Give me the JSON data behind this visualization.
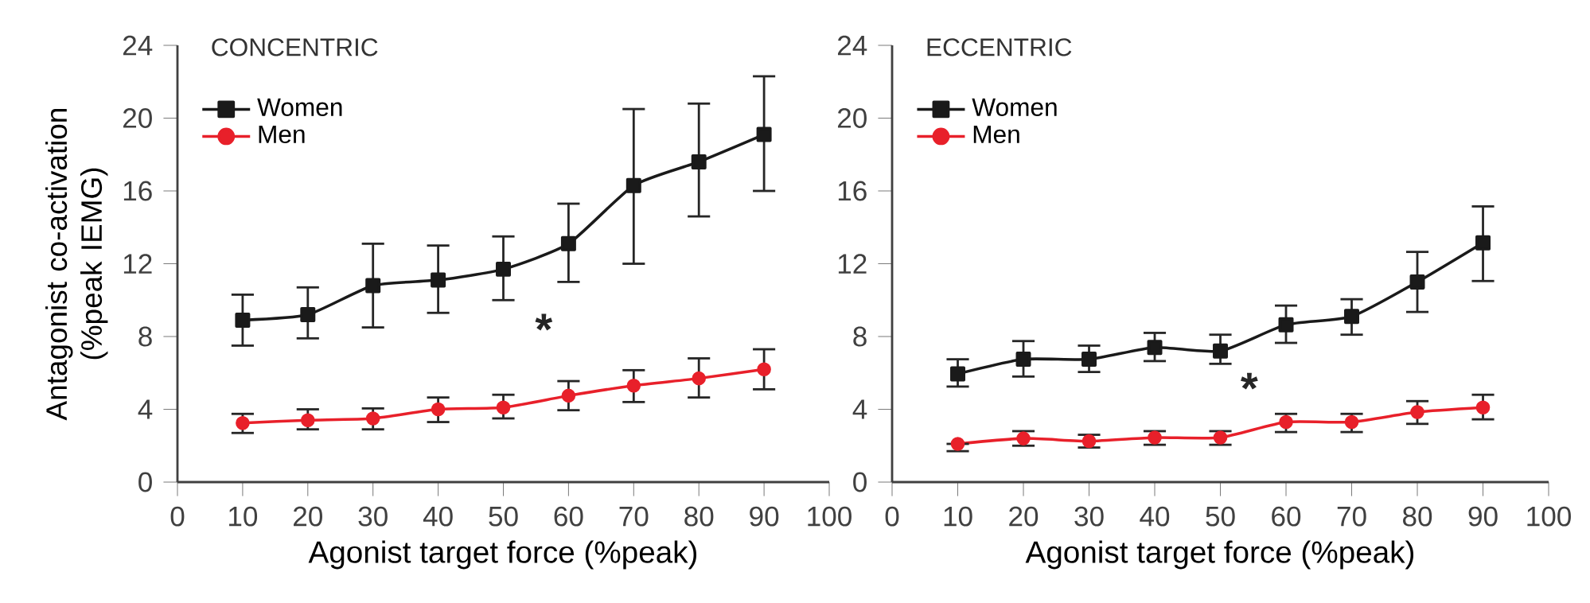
{
  "chart_data": [
    {
      "type": "line",
      "title": "CONCENTRIC",
      "xlabel": "Agonist target force (%peak)",
      "ylabel": "Antagonist co-activation (%peak IEMG)",
      "x": [
        10,
        20,
        30,
        40,
        50,
        60,
        70,
        80,
        90
      ],
      "xlim": [
        0,
        100
      ],
      "xticks": [
        0,
        10,
        20,
        30,
        40,
        50,
        60,
        70,
        80,
        90,
        100
      ],
      "ylim": [
        0,
        24
      ],
      "yticks": [
        0,
        4,
        8,
        12,
        16,
        20,
        24
      ],
      "legend": "top left",
      "series": [
        {
          "name": "Women",
          "color": "#1a1a1a",
          "marker": "square",
          "values": [
            8.9,
            9.2,
            10.8,
            11.1,
            11.7,
            13.1,
            16.3,
            17.6,
            19.1
          ],
          "errors": [
            [
              7.5,
              10.3
            ],
            [
              7.9,
              10.7
            ],
            [
              8.5,
              13.1
            ],
            [
              9.3,
              13.0
            ],
            [
              10.0,
              13.5
            ],
            [
              11.0,
              15.3
            ],
            [
              12.0,
              20.5
            ],
            [
              14.6,
              20.8
            ],
            [
              16.0,
              22.3
            ]
          ]
        },
        {
          "name": "Men",
          "color": "#e8202a",
          "marker": "circle",
          "values": [
            3.25,
            3.4,
            3.5,
            4.0,
            4.1,
            4.75,
            5.3,
            5.7,
            6.2
          ],
          "errors": [
            [
              2.7,
              3.75
            ],
            [
              2.9,
              4.0
            ],
            [
              2.9,
              4.05
            ],
            [
              3.3,
              4.65
            ],
            [
              3.5,
              4.8
            ],
            [
              3.95,
              5.55
            ],
            [
              4.4,
              6.15
            ],
            [
              4.65,
              6.8
            ],
            [
              5.1,
              7.3
            ]
          ]
        }
      ],
      "annotations": [
        "*"
      ]
    },
    {
      "type": "line",
      "title": "ECCENTRIC",
      "xlabel": "Agonist target force (%peak)",
      "x": [
        10,
        20,
        30,
        40,
        50,
        60,
        70,
        80,
        90
      ],
      "xlim": [
        0,
        100
      ],
      "xticks": [
        0,
        10,
        20,
        30,
        40,
        50,
        60,
        70,
        80,
        90,
        100
      ],
      "ylim": [
        0,
        24
      ],
      "yticks": [
        0,
        4,
        8,
        12,
        16,
        20,
        24
      ],
      "legend": "top left",
      "series": [
        {
          "name": "Women",
          "color": "#1a1a1a",
          "marker": "square",
          "values": [
            5.95,
            6.75,
            6.75,
            7.4,
            7.2,
            8.65,
            9.1,
            11.0,
            13.15
          ],
          "errors": [
            [
              5.25,
              6.75
            ],
            [
              5.8,
              7.75
            ],
            [
              6.05,
              7.5
            ],
            [
              6.65,
              8.2
            ],
            [
              6.5,
              8.1
            ],
            [
              7.65,
              9.7
            ],
            [
              8.1,
              10.05
            ],
            [
              9.35,
              12.65
            ],
            [
              11.05,
              15.15
            ]
          ]
        },
        {
          "name": "Men",
          "color": "#e8202a",
          "marker": "circle",
          "values": [
            2.1,
            2.4,
            2.25,
            2.45,
            2.45,
            3.3,
            3.3,
            3.85,
            4.1
          ],
          "errors": [
            [
              1.7,
              2.1
            ],
            [
              2.0,
              2.8
            ],
            [
              1.9,
              2.6
            ],
            [
              2.05,
              2.8
            ],
            [
              2.05,
              2.8
            ],
            [
              2.75,
              3.75
            ],
            [
              2.75,
              3.75
            ],
            [
              3.2,
              4.45
            ],
            [
              3.45,
              4.8
            ]
          ]
        }
      ],
      "annotations": [
        "*"
      ]
    }
  ]
}
